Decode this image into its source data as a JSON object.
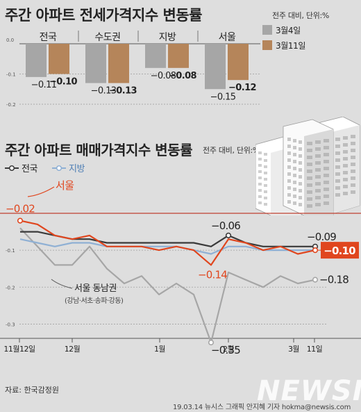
{
  "footer": {
    "source": "자료: 한국감정원",
    "credit": "19.03.14 뉴시스 그래픽 안지혜 기자 hokma@newsis.com",
    "logo": "NEWSIS"
  },
  "chart_data": [
    {
      "type": "bar",
      "title": "주간 아파트 전세가격지수 변동률",
      "subtitle": "전주 대비, 단위:%",
      "categories": [
        "전국",
        "수도권",
        "지방",
        "서울"
      ],
      "series": [
        {
          "name": "3월4일",
          "values": [
            -0.11,
            -0.13,
            -0.08,
            -0.15
          ],
          "color": "#a6a6a6"
        },
        {
          "name": "3월11일",
          "values": [
            -0.1,
            -0.13,
            -0.08,
            -0.12
          ],
          "color": "#b5855a"
        }
      ],
      "value_labels": {
        "3월4일": [
          "-0.11",
          "-0.13",
          "-0.08",
          "-0.15"
        ],
        "3월11일": [
          "-0.10",
          "-0.13",
          "-0.08",
          "-0.12"
        ]
      },
      "yticks": [
        "0.0",
        "-0.1",
        "-0.2"
      ],
      "ylim": [
        -0.2,
        0
      ],
      "legend_position": "top-right"
    },
    {
      "type": "line",
      "title": "주간 아파트 매매가격지수 변동률",
      "subtitle": "전주 대비, 단위:%",
      "x_count": 18,
      "xticks": [
        {
          "i": 0,
          "label": "11월12일"
        },
        {
          "i": 3,
          "label": "12월"
        },
        {
          "i": 8,
          "label": "1월"
        },
        {
          "i": 12,
          "label": "2월"
        },
        {
          "i": 16,
          "label": "3월"
        },
        {
          "i": 17,
          "label": "11일"
        }
      ],
      "yticks": [
        "-0.1",
        "-0.2",
        "-0.3"
      ],
      "ylim": [
        -0.35,
        0.0
      ],
      "series": [
        {
          "name": "전국",
          "legend": true,
          "color": "#3a3a3a",
          "width": 2.2,
          "values": [
            -0.05,
            -0.05,
            -0.06,
            -0.07,
            -0.07,
            -0.08,
            -0.08,
            -0.08,
            -0.08,
            -0.08,
            -0.08,
            -0.09,
            -0.06,
            -0.08,
            -0.09,
            -0.09,
            -0.09,
            -0.09
          ],
          "point_labels": [
            {
              "i": 12,
              "text": "-0.06"
            },
            {
              "i": 17,
              "text": "-0.09"
            }
          ]
        },
        {
          "name": "지방",
          "legend": true,
          "color": "#8fb0d4",
          "width": 2.2,
          "values": [
            -0.07,
            -0.08,
            -0.09,
            -0.08,
            -0.08,
            -0.09,
            -0.09,
            -0.09,
            -0.09,
            -0.09,
            -0.1,
            -0.11,
            -0.09,
            -0.09,
            -0.1,
            -0.1,
            -0.1,
            -0.1
          ],
          "point_labels": []
        },
        {
          "name": "서울",
          "legend": false,
          "label": "서울",
          "color": "#e0461e",
          "width": 2.2,
          "values": [
            -0.02,
            -0.03,
            -0.06,
            -0.07,
            -0.06,
            -0.09,
            -0.09,
            -0.09,
            -0.1,
            -0.09,
            -0.1,
            -0.14,
            -0.07,
            -0.08,
            -0.1,
            -0.09,
            -0.11,
            -0.1
          ],
          "point_labels": [
            {
              "i": 0,
              "text": "-0.02"
            },
            {
              "i": 11,
              "text": "-0.14"
            }
          ],
          "end_badge": "-0.10"
        },
        {
          "name": "서울 동남권",
          "legend": false,
          "label": "서울 동남권",
          "sublabel": "(강남·서초·송파·강동)",
          "color": "#a6a6a6",
          "width": 2.2,
          "values": [
            -0.04,
            -0.09,
            -0.14,
            -0.14,
            -0.09,
            -0.15,
            -0.19,
            -0.17,
            -0.22,
            -0.19,
            -0.22,
            -0.35,
            -0.16,
            -0.18,
            -0.2,
            -0.17,
            -0.19,
            -0.18
          ],
          "point_labels": [
            {
              "i": 11,
              "text": "-0.35"
            }
          ],
          "end_label": "-0.18"
        }
      ]
    }
  ]
}
